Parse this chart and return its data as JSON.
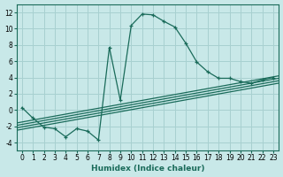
{
  "xlabel": "Humidex (Indice chaleur)",
  "bg_color": "#c8e8e8",
  "grid_color": "#a8d0d0",
  "line_color": "#1a6b5a",
  "xlim": [
    -0.5,
    23.5
  ],
  "ylim": [
    -5,
    13
  ],
  "yticks": [
    -4,
    -2,
    0,
    2,
    4,
    6,
    8,
    10,
    12
  ],
  "xticks": [
    0,
    1,
    2,
    3,
    4,
    5,
    6,
    7,
    8,
    9,
    10,
    11,
    12,
    13,
    14,
    15,
    16,
    17,
    18,
    19,
    20,
    21,
    22,
    23
  ],
  "main_x": [
    0,
    1,
    2,
    3,
    4,
    5,
    6,
    7,
    8,
    9,
    10,
    11,
    12,
    13,
    14,
    15,
    16,
    17,
    18,
    19,
    20,
    21,
    22,
    23
  ],
  "main_y": [
    0.3,
    -1.0,
    -2.1,
    -2.3,
    -3.3,
    -2.3,
    -2.6,
    -3.7,
    7.7,
    1.2,
    10.4,
    11.8,
    11.7,
    10.9,
    10.2,
    8.2,
    5.9,
    4.7,
    3.9,
    3.9,
    3.5,
    3.3,
    3.7,
    4.0
  ],
  "band_lines": [
    [
      -0.5,
      -1.6,
      23.5,
      4.2
    ],
    [
      -0.5,
      -1.9,
      23.5,
      3.9
    ],
    [
      -0.5,
      -2.2,
      23.5,
      3.6
    ],
    [
      -0.5,
      -2.5,
      23.5,
      3.3
    ]
  ],
  "xlabel_fontsize": 6.5,
  "tick_fontsize": 5.5,
  "lw": 0.9
}
